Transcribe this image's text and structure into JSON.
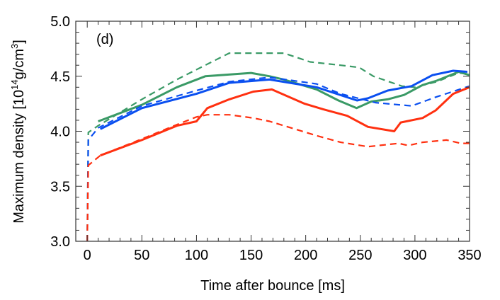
{
  "chart_data": {
    "type": "line",
    "panel_label": "(d)",
    "xlabel": "Time after bounce [ms]",
    "ylabel": {
      "prefix": "Maximum density [10",
      "sup1": "14",
      "mid": "g/cm",
      "sup2": "3",
      "suffix": "]"
    },
    "xlim": [
      -10.5,
      350
    ],
    "ylim": [
      3.0,
      5.0
    ],
    "xticks": [
      0,
      50,
      100,
      150,
      200,
      250,
      300,
      350
    ],
    "xtick_labels": [
      "0",
      "50",
      "100",
      "150",
      "200",
      "250",
      "300",
      "350"
    ],
    "yticks": [
      3.0,
      3.5,
      4.0,
      4.5,
      5.0
    ],
    "ytick_labels": [
      "3.0",
      "3.5",
      "4.0",
      "4.5",
      "5.0"
    ],
    "grid": false,
    "series": [
      {
        "color": "#3a9a66",
        "style": "dashed",
        "x": [
          0,
          1,
          10,
          50,
          82,
          130,
          167,
          180,
          204,
          232,
          249,
          262,
          288,
          300,
          320,
          340,
          350
        ],
        "y": [
          3.0,
          3.99,
          4.05,
          4.29,
          4.47,
          4.71,
          4.71,
          4.71,
          4.63,
          4.6,
          4.58,
          4.5,
          4.41,
          4.4,
          4.45,
          4.53,
          4.52
        ]
      },
      {
        "color": "#3a9a66",
        "style": "solid",
        "x": [
          10,
          50,
          82,
          108,
          150,
          167,
          180,
          210,
          230,
          246.6,
          260,
          275,
          290,
          307,
          320,
          340,
          350
        ],
        "y": [
          4.09,
          4.24,
          4.4,
          4.5,
          4.53,
          4.5,
          4.47,
          4.38,
          4.28,
          4.21,
          4.27,
          4.29,
          4.33,
          4.42,
          4.46,
          4.54,
          4.51
        ]
      },
      {
        "color": "#0a4ff0",
        "style": "dashed",
        "x": [
          0,
          1,
          10,
          50,
          100,
          130,
          167,
          210,
          232,
          264,
          297,
          319,
          350
        ],
        "y": [
          3.0,
          3.92,
          4.03,
          4.23,
          4.37,
          4.45,
          4.49,
          4.43,
          4.34,
          4.26,
          4.23,
          4.31,
          4.41
        ]
      },
      {
        "color": "#0a4ff0",
        "style": "solid",
        "x": [
          12,
          50,
          100,
          130,
          167,
          210,
          247,
          257,
          275,
          297,
          316,
          335,
          348
        ],
        "y": [
          4.02,
          4.21,
          4.34,
          4.44,
          4.47,
          4.4,
          4.28,
          4.3,
          4.37,
          4.41,
          4.51,
          4.55,
          4.54
        ]
      },
      {
        "color": "#ff3010",
        "style": "dashed",
        "x": [
          0,
          1,
          12,
          50,
          82,
          100,
          110,
          130,
          152,
          167,
          210,
          232,
          257,
          285,
          294,
          307,
          329,
          342,
          350
        ],
        "y": [
          3.0,
          3.69,
          3.78,
          3.93,
          4.06,
          4.13,
          4.15,
          4.15,
          4.12,
          4.09,
          3.96,
          3.9,
          3.86,
          3.89,
          3.87,
          3.9,
          3.92,
          3.89,
          3.89
        ]
      },
      {
        "color": "#ff3010",
        "style": "solid",
        "x": [
          12,
          50,
          82,
          100,
          110,
          130,
          152,
          169,
          199,
          216,
          238,
          257,
          281,
          287,
          307,
          319,
          335,
          350
        ],
        "y": [
          3.78,
          3.92,
          4.05,
          4.09,
          4.21,
          4.29,
          4.36,
          4.38,
          4.25,
          4.2,
          4.14,
          4.04,
          4.0,
          4.08,
          4.12,
          4.19,
          4.34,
          4.4
        ]
      }
    ]
  }
}
